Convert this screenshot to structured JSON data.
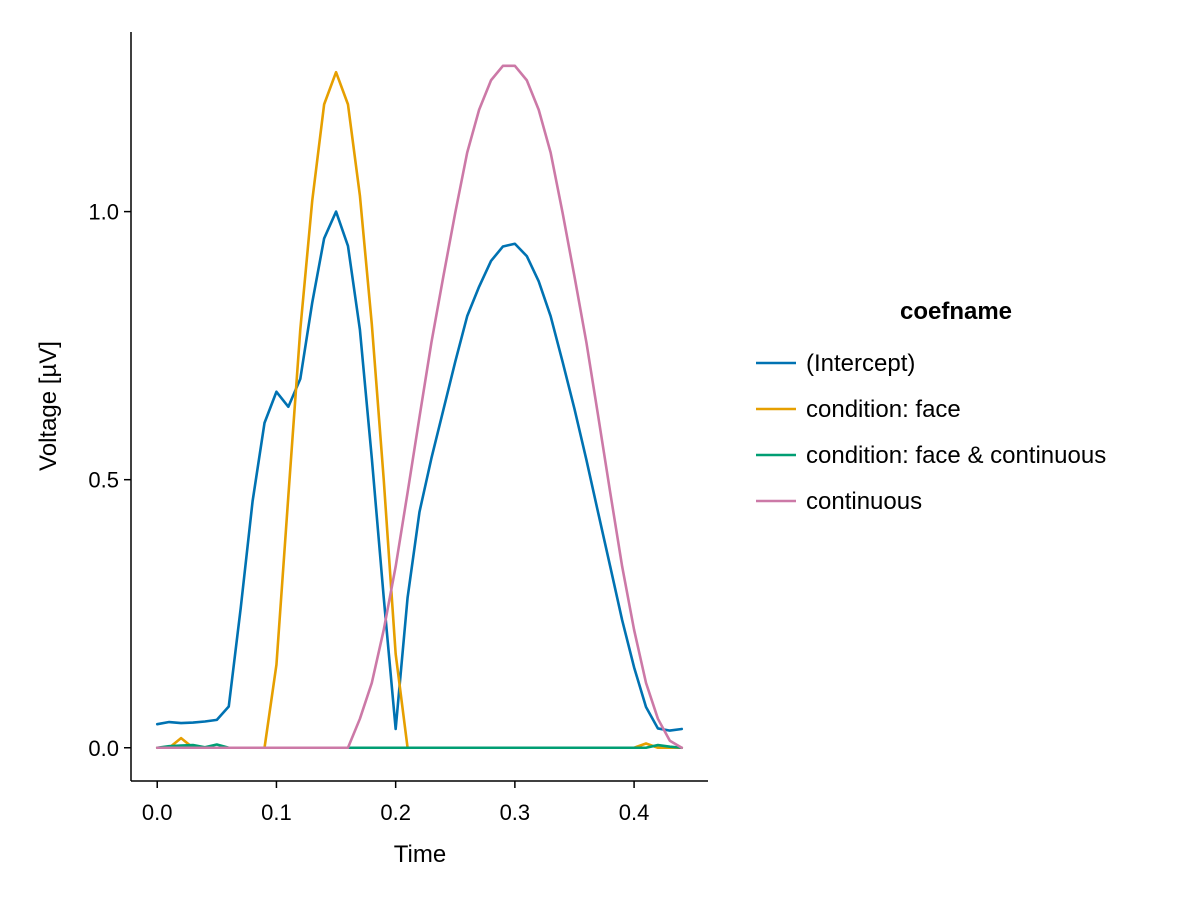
{
  "chart_data": {
    "type": "line",
    "title": "",
    "xlabel": "Time",
    "ylabel": "Voltage [µV]",
    "xlim": [
      -0.022,
      0.462
    ],
    "ylim": [
      -0.062,
      1.335
    ],
    "xticks": [
      0.0,
      0.1,
      0.2,
      0.3,
      0.4
    ],
    "xtick_labels": [
      "0.0",
      "0.1",
      "0.2",
      "0.3",
      "0.4"
    ],
    "yticks": [
      0.0,
      0.5,
      1.0
    ],
    "ytick_labels": [
      "0.0",
      "0.5",
      "1.0"
    ],
    "grid": false,
    "legend": {
      "title": "coefname",
      "placement": "right"
    },
    "x": [
      0.0,
      0.01,
      0.02,
      0.03,
      0.04,
      0.05,
      0.06,
      0.07,
      0.08,
      0.09,
      0.1,
      0.11,
      0.12,
      0.13,
      0.14,
      0.15,
      0.16,
      0.17,
      0.18,
      0.19,
      0.2,
      0.21,
      0.22,
      0.23,
      0.24,
      0.25,
      0.26,
      0.27,
      0.28,
      0.29,
      0.3,
      0.31,
      0.32,
      0.33,
      0.34,
      0.35,
      0.36,
      0.37,
      0.38,
      0.39,
      0.4,
      0.41,
      0.42,
      0.43,
      0.44
    ],
    "series": [
      {
        "name": "(Intercept)",
        "color": "#0072B2",
        "values": [
          0.044,
          0.048,
          0.046,
          0.047,
          0.049,
          0.052,
          0.077,
          0.26,
          0.46,
          0.606,
          0.664,
          0.636,
          0.688,
          0.83,
          0.95,
          1.0,
          0.936,
          0.78,
          0.54,
          0.28,
          0.035,
          0.28,
          0.44,
          0.54,
          0.63,
          0.72,
          0.805,
          0.86,
          0.908,
          0.935,
          0.94,
          0.917,
          0.87,
          0.805,
          0.72,
          0.632,
          0.537,
          0.437,
          0.338,
          0.238,
          0.15,
          0.076,
          0.036,
          0.032,
          0.035
        ]
      },
      {
        "name": "condition: face",
        "color": "#E69F00",
        "values": [
          0.0,
          0.0,
          0.018,
          0.0,
          0.0,
          0.0,
          0.0,
          0.0,
          0.0,
          0.0,
          0.155,
          0.47,
          0.78,
          1.02,
          1.2,
          1.26,
          1.2,
          1.03,
          0.79,
          0.5,
          0.175,
          0.0,
          0.0,
          0.0,
          0.0,
          0.0,
          0.0,
          0.0,
          0.0,
          0.0,
          0.0,
          0.0,
          0.0,
          0.0,
          0.0,
          0.0,
          0.0,
          0.0,
          0.0,
          0.0,
          0.0,
          0.008,
          0.0,
          0.0,
          0.0
        ]
      },
      {
        "name": "condition: face & continuous",
        "color": "#009E73",
        "values": [
          0.0,
          0.003,
          0.004,
          0.005,
          0.001,
          0.006,
          0.0,
          0.0,
          0.0,
          0.0,
          0.0,
          0.0,
          0.0,
          0.0,
          0.0,
          0.0,
          0.0,
          0.0,
          0.0,
          0.0,
          0.0,
          0.0,
          0.0,
          0.0,
          0.0,
          0.0,
          0.0,
          0.0,
          0.0,
          0.0,
          0.0,
          0.0,
          0.0,
          0.0,
          0.0,
          0.0,
          0.0,
          0.0,
          0.0,
          0.0,
          0.0,
          0.0,
          0.005,
          0.002,
          0.0
        ]
      },
      {
        "name": "continuous",
        "color": "#CC79A7",
        "values": [
          0.0,
          0.0,
          0.0,
          0.0,
          0.0,
          0.0,
          0.0,
          0.0,
          0.0,
          0.0,
          0.0,
          0.0,
          0.0,
          0.0,
          0.0,
          0.0,
          0.0,
          0.054,
          0.121,
          0.22,
          0.338,
          0.476,
          0.617,
          0.756,
          0.879,
          0.998,
          1.11,
          1.19,
          1.245,
          1.272,
          1.272,
          1.245,
          1.19,
          1.11,
          0.998,
          0.879,
          0.756,
          0.617,
          0.476,
          0.338,
          0.22,
          0.121,
          0.054,
          0.013,
          0.0
        ]
      }
    ]
  }
}
